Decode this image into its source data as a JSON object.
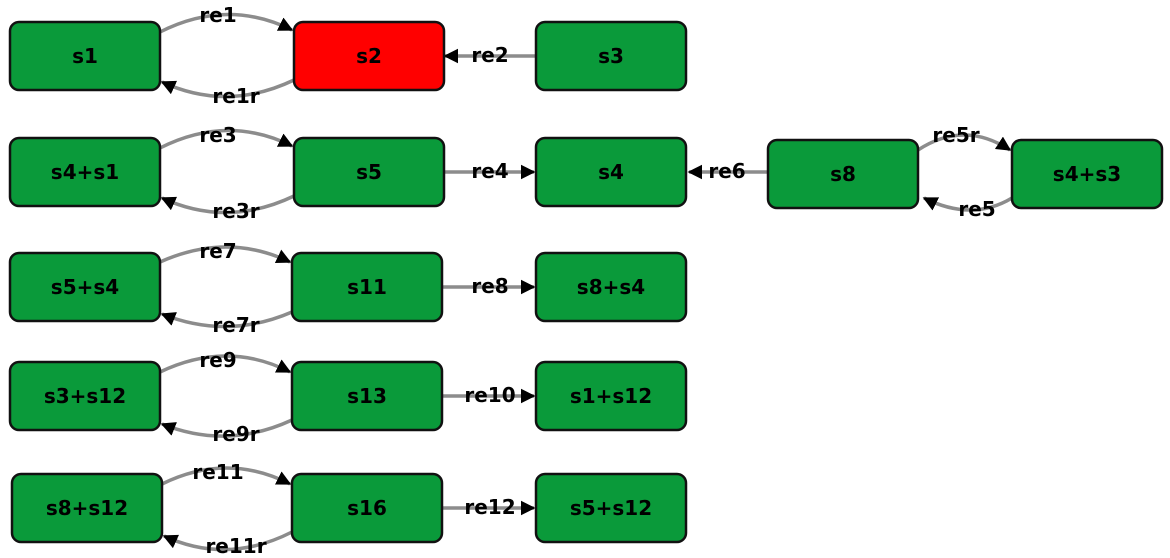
{
  "colors": {
    "default_node": "#0a9a3a",
    "highlight_node": "#ff0000",
    "edge": "#8c8c8c",
    "arrowhead": "#000000",
    "node_border": "#111111"
  },
  "nodes": [
    {
      "id": "s1",
      "label": "s1",
      "highlight": false
    },
    {
      "id": "s2",
      "label": "s2",
      "highlight": true
    },
    {
      "id": "s3",
      "label": "s3",
      "highlight": false
    },
    {
      "id": "s4+s1",
      "label": "s4+s1",
      "highlight": false
    },
    {
      "id": "s5",
      "label": "s5",
      "highlight": false
    },
    {
      "id": "s4",
      "label": "s4",
      "highlight": false
    },
    {
      "id": "s8",
      "label": "s8",
      "highlight": false
    },
    {
      "id": "s4+s3",
      "label": "s4+s3",
      "highlight": false
    },
    {
      "id": "s5+s4",
      "label": "s5+s4",
      "highlight": false
    },
    {
      "id": "s11",
      "label": "s11",
      "highlight": false
    },
    {
      "id": "s8+s4",
      "label": "s8+s4",
      "highlight": false
    },
    {
      "id": "s3+s12",
      "label": "s3+s12",
      "highlight": false
    },
    {
      "id": "s13",
      "label": "s13",
      "highlight": false
    },
    {
      "id": "s1+s12",
      "label": "s1+s12",
      "highlight": false
    },
    {
      "id": "s8+s12",
      "label": "s8+s12",
      "highlight": false
    },
    {
      "id": "s16",
      "label": "s16",
      "highlight": false
    },
    {
      "id": "s5+s12",
      "label": "s5+s12",
      "highlight": false
    }
  ],
  "edges": [
    {
      "label": "re1",
      "from": "s1",
      "to": "s2"
    },
    {
      "label": "re1r",
      "from": "s2",
      "to": "s1"
    },
    {
      "label": "re2",
      "from": "s3",
      "to": "s2"
    },
    {
      "label": "re3",
      "from": "s4+s1",
      "to": "s5"
    },
    {
      "label": "re3r",
      "from": "s5",
      "to": "s4+s1"
    },
    {
      "label": "re4",
      "from": "s5",
      "to": "s4"
    },
    {
      "label": "re6",
      "from": "s8",
      "to": "s4"
    },
    {
      "label": "re5r",
      "from": "s8",
      "to": "s4+s3"
    },
    {
      "label": "re5",
      "from": "s4+s3",
      "to": "s8"
    },
    {
      "label": "re7",
      "from": "s5+s4",
      "to": "s11"
    },
    {
      "label": "re7r",
      "from": "s11",
      "to": "s5+s4"
    },
    {
      "label": "re8",
      "from": "s11",
      "to": "s8+s4"
    },
    {
      "label": "re9",
      "from": "s3+s12",
      "to": "s13"
    },
    {
      "label": "re9r",
      "from": "s13",
      "to": "s3+s12"
    },
    {
      "label": "re10",
      "from": "s13",
      "to": "s1+s12"
    },
    {
      "label": "re11",
      "from": "s8+s12",
      "to": "s16"
    },
    {
      "label": "re11r",
      "from": "s16",
      "to": "s8+s12"
    },
    {
      "label": "re12",
      "from": "s16",
      "to": "s5+s12"
    }
  ]
}
